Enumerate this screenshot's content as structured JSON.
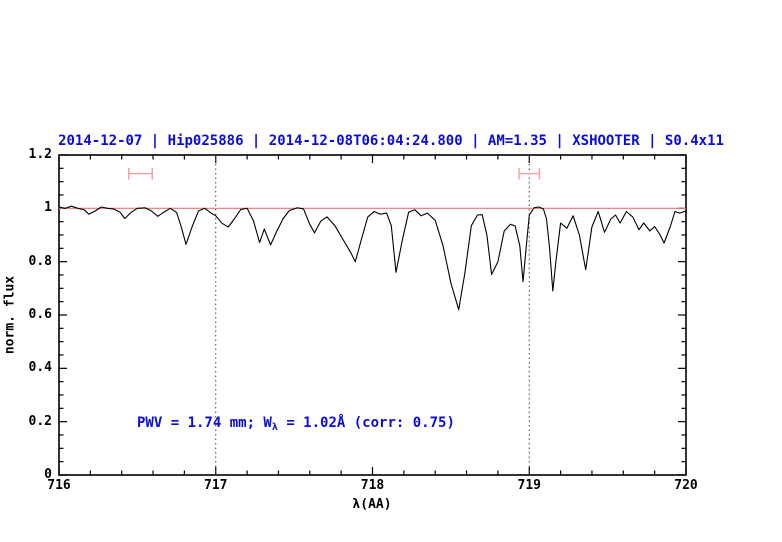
{
  "colors": {
    "accent_blue": "#0b0bdf",
    "continuum_red": "#ef7777",
    "marker_red": "#f5a3a3",
    "spectrum_black": "#000000",
    "dotted_line": "#444444"
  },
  "chart_data": {
    "type": "line",
    "title": "2014-12-07 | Hip025886 | 2014-12-08T06:04:24.800 | AM=1.35 | XSHOOTER | S0.4x11",
    "xlabel": "λ(AA)",
    "ylabel": "norm. flux",
    "xlim": [
      716,
      720
    ],
    "ylim": [
      0,
      1.2
    ],
    "grid": "off",
    "legend": "none",
    "x_major_ticks": [
      716,
      717,
      718,
      719,
      720
    ],
    "x_tick_labels": [
      "716",
      "717",
      "718",
      "719",
      "720"
    ],
    "x_minor_step": 0.2,
    "y_major_ticks": [
      0,
      0.2,
      0.4,
      0.6,
      0.8,
      1,
      1.2
    ],
    "y_tick_labels": [
      "0",
      "0.2",
      "0.4",
      "0.6",
      "0.8",
      "1",
      "1.2"
    ],
    "y_minor_step": 0.05,
    "dotted_vlines": [
      717,
      719
    ],
    "continuum_level": 1.0,
    "annotation": {
      "pre": "PWV = 1.74 mm; W",
      "sub": "λ",
      "post": " = 1.02Å (corr: 0.75)"
    },
    "band_markers": [
      {
        "x_center": 716.52,
        "x_halfwidth": 0.075,
        "flux": 1.13,
        "cap_halfheight": 0.022
      },
      {
        "x_center": 719.0,
        "x_halfwidth": 0.065,
        "flux": 1.13,
        "cap_halfheight": 0.022
      }
    ],
    "series": [
      {
        "name": "telluric-spectrum",
        "color": "#000000",
        "points": [
          [
            716.0,
            1.005
          ],
          [
            716.04,
            1.0
          ],
          [
            716.08,
            1.008
          ],
          [
            716.12,
            1.0
          ],
          [
            716.16,
            0.995
          ],
          [
            716.19,
            0.978
          ],
          [
            716.23,
            0.99
          ],
          [
            716.27,
            1.005
          ],
          [
            716.31,
            1.0
          ],
          [
            716.35,
            0.997
          ],
          [
            716.39,
            0.985
          ],
          [
            716.42,
            0.962
          ],
          [
            716.46,
            0.985
          ],
          [
            716.5,
            1.0
          ],
          [
            716.55,
            1.002
          ],
          [
            716.59,
            0.99
          ],
          [
            716.63,
            0.97
          ],
          [
            716.67,
            0.986
          ],
          [
            716.71,
            1.0
          ],
          [
            716.75,
            0.984
          ],
          [
            716.78,
            0.93
          ],
          [
            716.81,
            0.865
          ],
          [
            716.85,
            0.932
          ],
          [
            716.89,
            0.99
          ],
          [
            716.93,
            1.0
          ],
          [
            716.97,
            0.982
          ],
          [
            717.0,
            0.972
          ],
          [
            717.04,
            0.944
          ],
          [
            717.08,
            0.93
          ],
          [
            717.12,
            0.962
          ],
          [
            717.16,
            0.996
          ],
          [
            717.2,
            1.0
          ],
          [
            717.24,
            0.954
          ],
          [
            717.28,
            0.872
          ],
          [
            717.31,
            0.922
          ],
          [
            717.35,
            0.863
          ],
          [
            717.39,
            0.915
          ],
          [
            717.43,
            0.962
          ],
          [
            717.47,
            0.992
          ],
          [
            717.52,
            1.002
          ],
          [
            717.56,
            0.998
          ],
          [
            717.6,
            0.94
          ],
          [
            717.63,
            0.908
          ],
          [
            717.67,
            0.952
          ],
          [
            717.71,
            0.968
          ],
          [
            717.76,
            0.935
          ],
          [
            717.81,
            0.885
          ],
          [
            717.86,
            0.835
          ],
          [
            717.89,
            0.8
          ],
          [
            717.93,
            0.885
          ],
          [
            717.97,
            0.968
          ],
          [
            718.01,
            0.988
          ],
          [
            718.05,
            0.978
          ],
          [
            718.09,
            0.982
          ],
          [
            718.12,
            0.935
          ],
          [
            718.15,
            0.76
          ],
          [
            718.19,
            0.88
          ],
          [
            718.23,
            0.985
          ],
          [
            718.27,
            0.995
          ],
          [
            718.31,
            0.972
          ],
          [
            718.35,
            0.982
          ],
          [
            718.4,
            0.955
          ],
          [
            718.45,
            0.86
          ],
          [
            718.5,
            0.72
          ],
          [
            718.55,
            0.62
          ],
          [
            718.59,
            0.76
          ],
          [
            718.63,
            0.935
          ],
          [
            718.67,
            0.975
          ],
          [
            718.7,
            0.976
          ],
          [
            718.73,
            0.9
          ],
          [
            718.76,
            0.752
          ],
          [
            718.8,
            0.8
          ],
          [
            718.84,
            0.915
          ],
          [
            718.88,
            0.94
          ],
          [
            718.91,
            0.934
          ],
          [
            718.94,
            0.86
          ],
          [
            718.96,
            0.725
          ],
          [
            718.98,
            0.85
          ],
          [
            719.0,
            0.975
          ],
          [
            719.03,
            1.002
          ],
          [
            719.06,
            1.005
          ],
          [
            719.09,
            0.998
          ],
          [
            719.11,
            0.96
          ],
          [
            719.13,
            0.85
          ],
          [
            719.15,
            0.69
          ],
          [
            719.17,
            0.8
          ],
          [
            719.2,
            0.945
          ],
          [
            719.24,
            0.925
          ],
          [
            719.28,
            0.972
          ],
          [
            719.32,
            0.9
          ],
          [
            719.36,
            0.77
          ],
          [
            719.4,
            0.93
          ],
          [
            719.44,
            0.988
          ],
          [
            719.48,
            0.91
          ],
          [
            719.52,
            0.96
          ],
          [
            719.55,
            0.975
          ],
          [
            719.58,
            0.945
          ],
          [
            719.62,
            0.988
          ],
          [
            719.66,
            0.968
          ],
          [
            719.7,
            0.92
          ],
          [
            719.73,
            0.945
          ],
          [
            719.77,
            0.915
          ],
          [
            719.8,
            0.932
          ],
          [
            719.83,
            0.905
          ],
          [
            719.86,
            0.87
          ],
          [
            719.9,
            0.932
          ],
          [
            719.93,
            0.988
          ],
          [
            719.96,
            0.982
          ],
          [
            720.0,
            0.99
          ]
        ]
      }
    ]
  }
}
